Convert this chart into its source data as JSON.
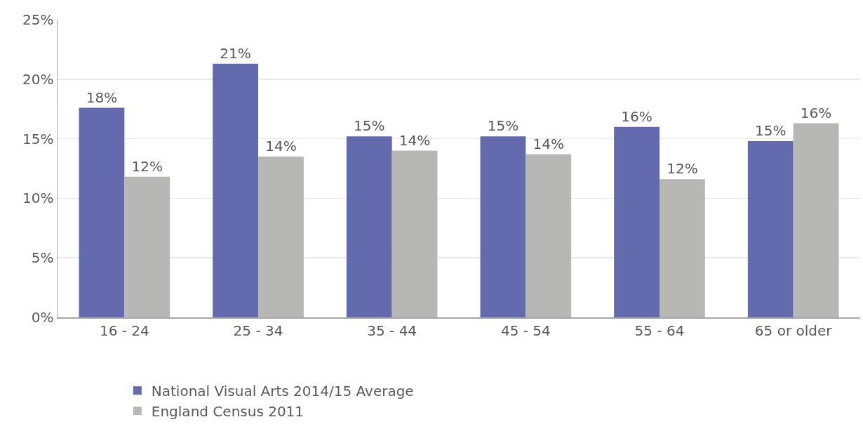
{
  "chart_data": {
    "type": "bar",
    "categories": [
      "16 - 24",
      "25 - 34",
      "35 - 44",
      "45 - 54",
      "55 - 64",
      "65 or older"
    ],
    "series": [
      {
        "name": "National Visual Arts 2014/15 Average",
        "color": "#636aae",
        "values": [
          17.6,
          21.3,
          15.2,
          15.2,
          16.0,
          14.8
        ],
        "value_labels": [
          "18%",
          "21%",
          "15%",
          "15%",
          "16%",
          "15%"
        ]
      },
      {
        "name": "England Census 2011",
        "color": "#b7b7b6",
        "values": [
          11.8,
          13.5,
          14.0,
          13.7,
          11.6,
          16.3
        ],
        "value_labels": [
          "12%",
          "14%",
          "14%",
          "14%",
          "12%",
          "16%"
        ]
      }
    ],
    "ylim": [
      0,
      25
    ],
    "yticks": [
      {
        "value": 0,
        "label": "0%"
      },
      {
        "value": 5,
        "label": "5%"
      },
      {
        "value": 10,
        "label": "10%"
      },
      {
        "value": 15,
        "label": "15%"
      },
      {
        "value": 20,
        "label": "20%"
      },
      {
        "value": 25,
        "label": "25%"
      }
    ],
    "grid": "y",
    "legend": "bottom"
  }
}
